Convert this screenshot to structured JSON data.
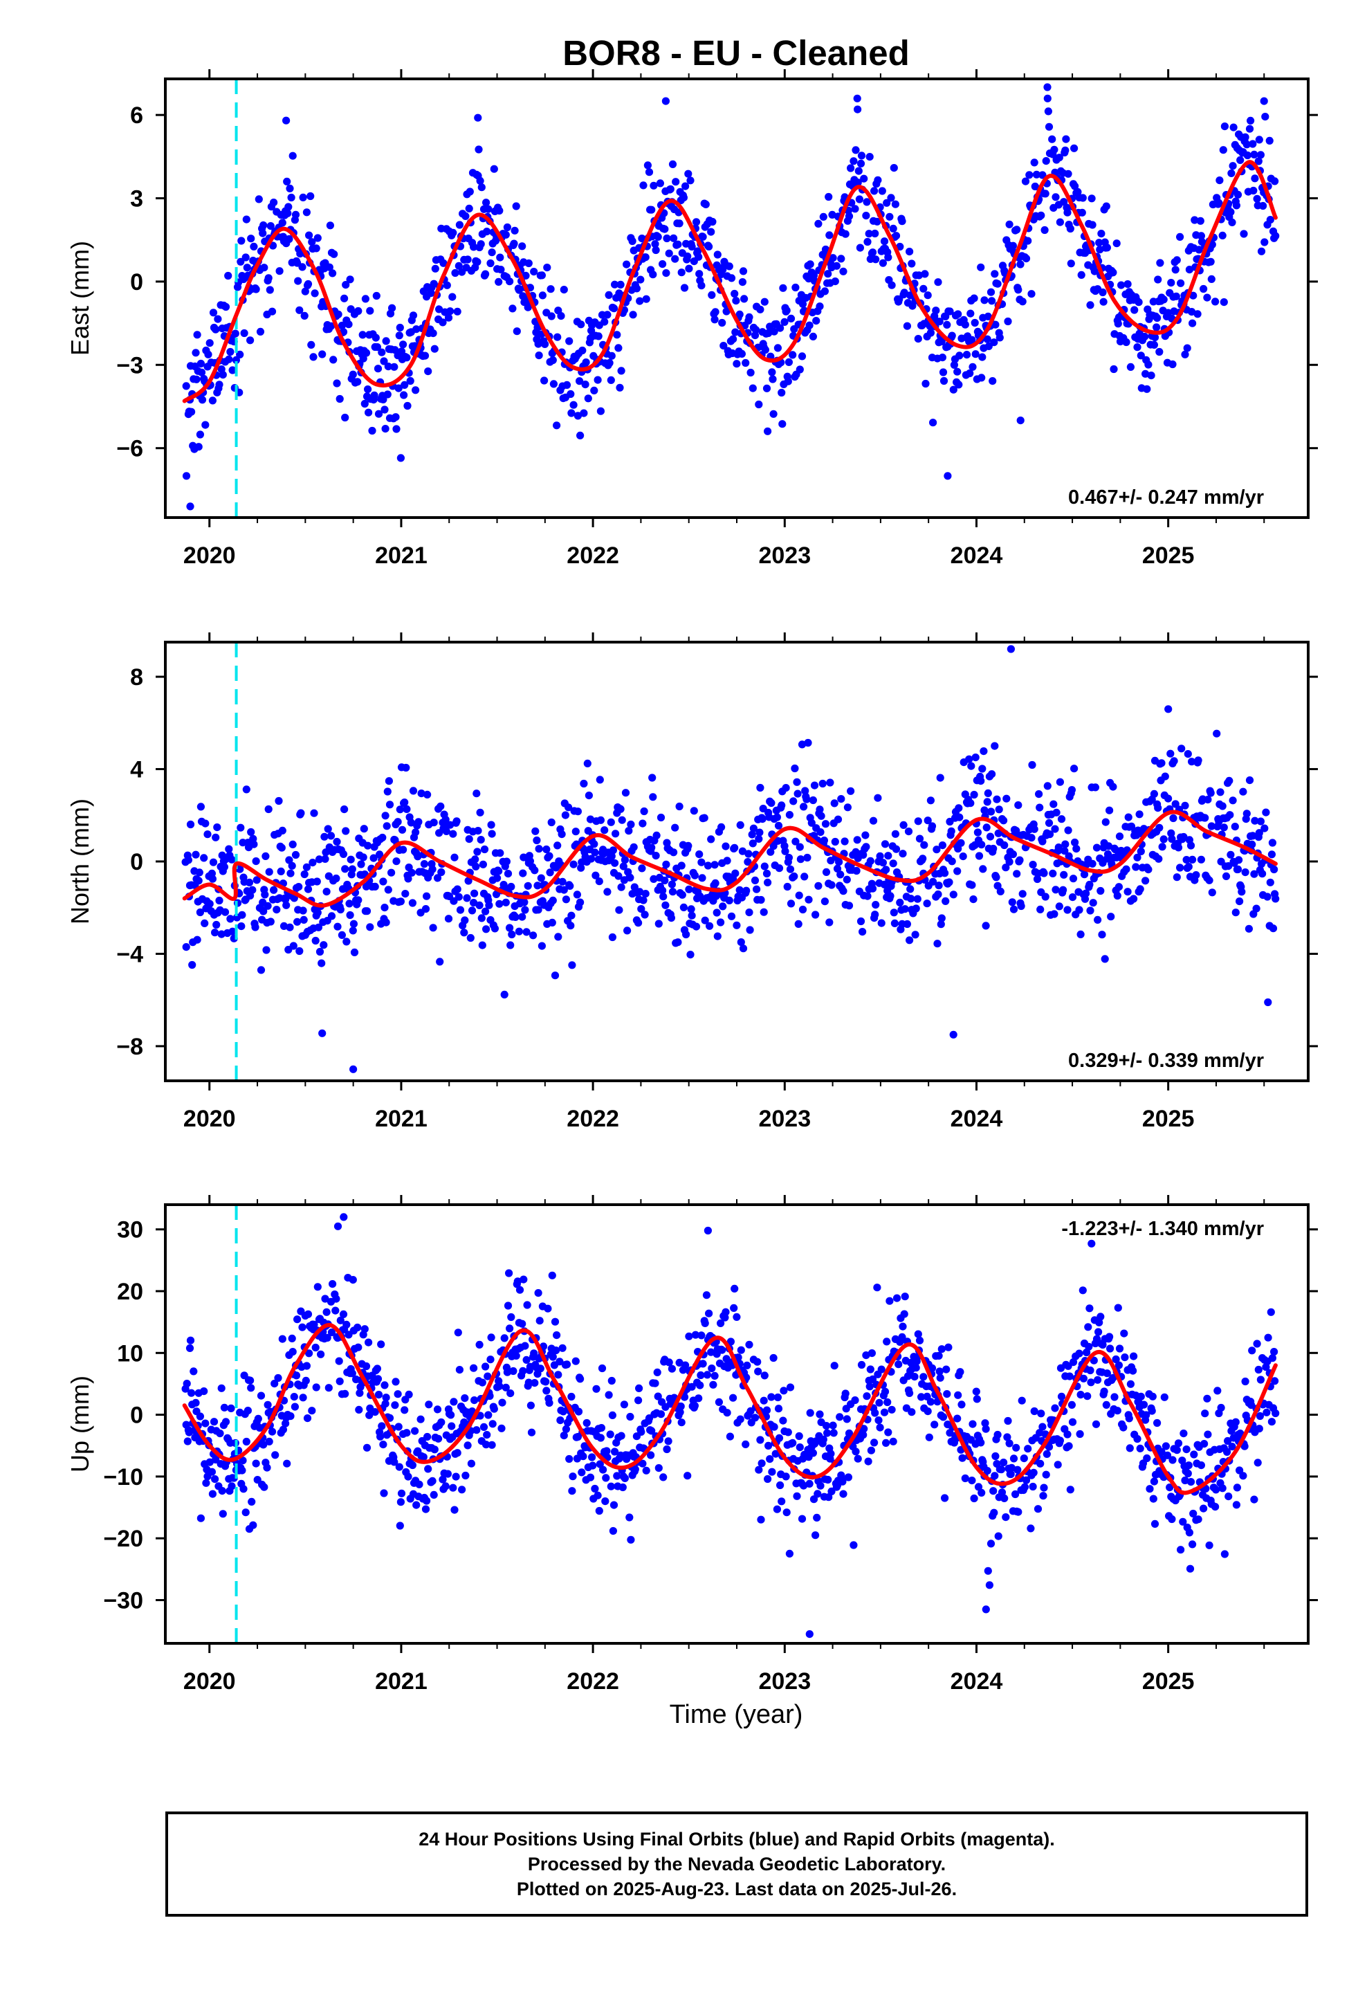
{
  "title": "BOR8  - EU - Cleaned",
  "colors": {
    "points": "#0000ff",
    "fit": "#ff0000",
    "step": "#00e5ee",
    "frame": "#000000"
  },
  "x_axis_label": "Time (year)",
  "footer": {
    "line1": "24 Hour Positions Using Final Orbits (blue) and Rapid Orbits (magenta).",
    "line2": "Processed by the Nevada Geodetic Laboratory.",
    "line3": "Plotted on 2025-Aug-23. Last data on 2025-Jul-26."
  },
  "chart_data": [
    {
      "type": "scatter",
      "component": "east",
      "ylabel": "East (mm)",
      "xlim": [
        2019.77,
        2025.73
      ],
      "ylim": [
        -8.5,
        7.3
      ],
      "yticks": [
        -6,
        -3,
        0,
        3,
        6
      ],
      "xticks": [
        2020,
        2021,
        2022,
        2023,
        2024,
        2025
      ],
      "rate_label": "0.467+/- 0.247 mm/yr",
      "rate_position": "bottom-right",
      "step_epoch": 2020.14,
      "fit": {
        "x": [
          2019.87,
          2020.0,
          2020.14,
          2020.25,
          2020.39,
          2020.55,
          2020.7,
          2020.87,
          2021.05,
          2021.22,
          2021.4,
          2021.58,
          2021.75,
          2021.9,
          2022.05,
          2022.22,
          2022.4,
          2022.57,
          2022.75,
          2022.9,
          2023.05,
          2023.22,
          2023.38,
          2023.55,
          2023.72,
          2023.9,
          2024.05,
          2024.22,
          2024.38,
          2024.55,
          2024.72,
          2024.9,
          2025.05,
          2025.22,
          2025.42,
          2025.56
        ],
        "y": [
          -4.3,
          -3.6,
          -1.2,
          0.6,
          1.9,
          0.4,
          -2.2,
          -3.7,
          -3.0,
          0.2,
          2.4,
          0.8,
          -1.8,
          -3.1,
          -2.6,
          0.5,
          2.9,
          1.2,
          -1.4,
          -2.8,
          -2.2,
          0.8,
          3.4,
          1.6,
          -1.0,
          -2.3,
          -1.8,
          1.2,
          3.8,
          2.0,
          -0.7,
          -1.8,
          -1.3,
          1.6,
          4.3,
          2.3
        ]
      },
      "points_sample": {
        "x": [
          2019.88,
          2019.9,
          2020.4,
          2021.4,
          2022.38,
          2023.38,
          2024.37,
          2024.23,
          2023.85,
          2025.5
        ],
        "y": [
          -7.0,
          -8.1,
          5.8,
          5.9,
          6.5,
          6.2,
          7.0,
          -5.0,
          -7.0,
          6.5
        ]
      }
    },
    {
      "type": "scatter",
      "component": "north",
      "ylabel": "North (mm)",
      "xlim": [
        2019.77,
        2025.73
      ],
      "ylim": [
        -9.5,
        9.5
      ],
      "yticks": [
        -8,
        -4,
        0,
        4,
        8
      ],
      "xticks": [
        2020,
        2021,
        2022,
        2023,
        2024,
        2025
      ],
      "rate_label": "0.329+/- 0.339 mm/yr",
      "rate_position": "bottom-right",
      "step_epoch": 2020.14,
      "fit": {
        "x": [
          2019.87,
          2020.0,
          2020.13,
          2020.14,
          2020.3,
          2020.45,
          2020.6,
          2020.8,
          2021.0,
          2021.2,
          2021.4,
          2021.6,
          2021.75,
          2022.0,
          2022.2,
          2022.4,
          2022.6,
          2022.75,
          2023.0,
          2023.2,
          2023.4,
          2023.6,
          2023.75,
          2024.0,
          2024.2,
          2024.4,
          2024.6,
          2024.75,
          2025.0,
          2025.2,
          2025.4,
          2025.56
        ],
        "y": [
          -1.6,
          -1.0,
          -1.6,
          -0.1,
          -0.8,
          -1.4,
          -1.9,
          -0.9,
          0.8,
          0.0,
          -0.8,
          -1.5,
          -1.2,
          1.1,
          0.2,
          -0.5,
          -1.2,
          -0.9,
          1.4,
          0.6,
          -0.2,
          -0.8,
          -0.5,
          1.8,
          1.0,
          0.3,
          -0.4,
          -0.1,
          2.1,
          1.3,
          0.6,
          -0.1
        ]
      },
      "points_sample": {
        "x": [
          2020.75,
          2023.88,
          2024.18,
          2025.52,
          2025.0
        ],
        "y": [
          -9.0,
          -7.5,
          9.2,
          -6.1,
          6.6
        ]
      }
    },
    {
      "type": "scatter",
      "component": "up",
      "ylabel": "Up (mm)",
      "xlim": [
        2019.77,
        2025.73
      ],
      "ylim": [
        -37,
        34
      ],
      "yticks": [
        -30,
        -20,
        -10,
        0,
        10,
        20,
        30
      ],
      "xticks": [
        2020,
        2021,
        2022,
        2023,
        2024,
        2025
      ],
      "rate_label": "-1.223+/- 1.340 mm/yr",
      "rate_position": "top-right",
      "step_epoch": 2020.14,
      "fit": {
        "x": [
          2019.87,
          2020.0,
          2020.13,
          2020.3,
          2020.45,
          2020.63,
          2020.8,
          2021.0,
          2021.15,
          2021.35,
          2021.62,
          2021.8,
          2022.0,
          2022.17,
          2022.35,
          2022.63,
          2022.8,
          2023.0,
          2023.17,
          2023.35,
          2023.63,
          2023.8,
          2024.0,
          2024.17,
          2024.35,
          2024.62,
          2024.8,
          2025.0,
          2025.12,
          2025.35,
          2025.56
        ],
        "y": [
          1.5,
          -5.0,
          -7.2,
          -2.0,
          8.0,
          14.5,
          6.0,
          -5.0,
          -7.5,
          -2.0,
          13.5,
          5.5,
          -5.5,
          -8.5,
          -3.0,
          12.3,
          4.5,
          -7.0,
          -10.0,
          -4.0,
          11.2,
          3.5,
          -8.5,
          -11.0,
          -5.0,
          10.0,
          2.0,
          -10.0,
          -12.4,
          -6.0,
          8.0
        ]
      },
      "points_sample": {
        "x": [
          2020.7,
          2020.67,
          2023.13,
          2022.6,
          2024.6,
          2024.05
        ],
        "y": [
          32.0,
          30.5,
          -35.5,
          29.8,
          27.7,
          -31.5
        ]
      }
    }
  ]
}
